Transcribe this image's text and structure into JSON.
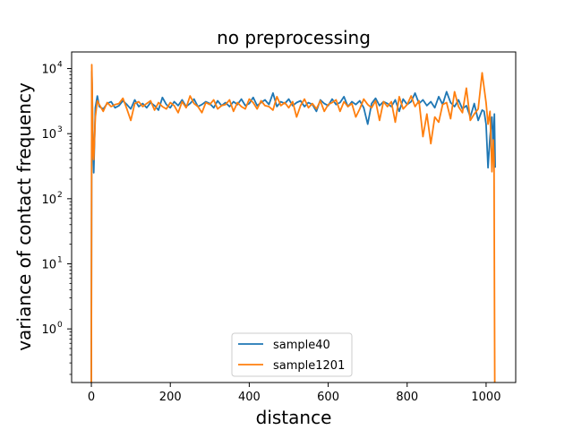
{
  "chart_data": {
    "type": "line",
    "title": "no preprocessing",
    "xlabel": "distance",
    "ylabel": "variance of contact frequency",
    "xlim": [
      -50,
      1075
    ],
    "ylim": [
      0.15,
      18000
    ],
    "yscale": "log",
    "grid": false,
    "legend_position": "bottom-center",
    "x_ticks": [
      0,
      200,
      400,
      600,
      800,
      1000
    ],
    "x_tick_labels": [
      "0",
      "200",
      "400",
      "600",
      "800",
      "1000"
    ],
    "y_ticks": [
      1,
      10,
      100,
      1000,
      10000
    ],
    "y_tick_labels": [
      "10",
      "10",
      "10",
      "10",
      "10"
    ],
    "y_tick_exponents": [
      "0",
      "1",
      "2",
      "3",
      "4"
    ],
    "series": [
      {
        "name": "sample40",
        "color": "#1f77b4",
        "x": [
          0,
          1,
          2,
          4,
          6,
          10,
          15,
          20,
          30,
          40,
          50,
          60,
          70,
          80,
          90,
          100,
          110,
          120,
          130,
          140,
          150,
          160,
          170,
          180,
          190,
          200,
          210,
          220,
          230,
          240,
          250,
          260,
          270,
          280,
          290,
          300,
          310,
          320,
          330,
          340,
          350,
          360,
          370,
          380,
          390,
          400,
          410,
          420,
          430,
          440,
          450,
          460,
          470,
          480,
          490,
          500,
          510,
          520,
          530,
          540,
          550,
          560,
          570,
          580,
          590,
          600,
          610,
          620,
          630,
          640,
          650,
          660,
          670,
          680,
          690,
          700,
          710,
          720,
          730,
          740,
          750,
          760,
          770,
          780,
          790,
          800,
          810,
          820,
          830,
          840,
          850,
          860,
          870,
          880,
          890,
          900,
          910,
          920,
          930,
          940,
          950,
          960,
          970,
          980,
          990,
          995,
          1000,
          1005,
          1010,
          1015,
          1018,
          1021,
          1023
        ],
        "y": [
          0.15,
          9000,
          5000,
          800,
          250,
          2500,
          3800,
          2600,
          2400,
          2900,
          3100,
          2500,
          2700,
          3200,
          2800,
          2400,
          3300,
          2600,
          2900,
          2500,
          3000,
          2700,
          2300,
          3600,
          2800,
          2500,
          3100,
          2700,
          3300,
          2600,
          2900,
          3400,
          2600,
          2800,
          3100,
          2900,
          2500,
          3200,
          2700,
          3000,
          2600,
          3100,
          2800,
          3400,
          2700,
          2900,
          3600,
          2700,
          3000,
          3300,
          2800,
          4200,
          2600,
          3100,
          2900,
          3400,
          2700,
          3000,
          3200,
          2600,
          3000,
          2800,
          2200,
          3300,
          2900,
          2700,
          3400,
          2800,
          3000,
          3700,
          2600,
          3100,
          2800,
          3200,
          2500,
          1400,
          2900,
          3500,
          2700,
          3100,
          2900,
          2600,
          3300,
          2200,
          3400,
          2800,
          3100,
          4200,
          2900,
          3300,
          2700,
          3100,
          2500,
          3700,
          2800,
          4400,
          3000,
          2600,
          3300,
          2400,
          2700,
          1800,
          2900,
          1600,
          2300,
          2200,
          1400,
          300,
          900,
          1800,
          600,
          2000,
          300
        ]
      },
      {
        "name": "sample1201",
        "color": "#ff7f0e",
        "x": [
          0,
          1,
          2,
          4,
          6,
          10,
          15,
          20,
          30,
          40,
          50,
          60,
          70,
          80,
          90,
          100,
          110,
          120,
          130,
          140,
          150,
          160,
          170,
          180,
          190,
          200,
          210,
          220,
          230,
          240,
          250,
          260,
          270,
          280,
          290,
          300,
          310,
          320,
          330,
          340,
          350,
          360,
          370,
          380,
          390,
          400,
          410,
          420,
          430,
          440,
          450,
          460,
          470,
          480,
          490,
          500,
          510,
          520,
          530,
          540,
          550,
          560,
          570,
          580,
          590,
          600,
          610,
          620,
          630,
          640,
          650,
          660,
          670,
          680,
          690,
          700,
          710,
          720,
          730,
          740,
          750,
          760,
          770,
          780,
          790,
          800,
          810,
          820,
          830,
          840,
          850,
          860,
          870,
          880,
          890,
          900,
          910,
          920,
          930,
          940,
          950,
          960,
          970,
          980,
          990,
          1000,
          1005,
          1010,
          1015,
          1018,
          1020,
          1022,
          1023
        ],
        "y": [
          0.15,
          11500,
          6000,
          500,
          400,
          1800,
          3200,
          2800,
          2200,
          3000,
          2600,
          2800,
          2900,
          3500,
          2400,
          1600,
          2900,
          3100,
          2600,
          2900,
          3200,
          2300,
          3000,
          2600,
          2400,
          3000,
          2700,
          2100,
          3100,
          2500,
          3800,
          2900,
          2600,
          2100,
          3000,
          2800,
          3300,
          2400,
          2700,
          2800,
          3300,
          2200,
          3000,
          2600,
          2400,
          3400,
          3000,
          2400,
          3200,
          2700,
          2600,
          2300,
          3700,
          2700,
          3000,
          2500,
          3100,
          1800,
          2700,
          3400,
          2500,
          2900,
          2400,
          3200,
          2200,
          2800,
          3000,
          3300,
          2200,
          3100,
          2600,
          2900,
          1800,
          2400,
          3400,
          2800,
          2500,
          3200,
          1600,
          3100,
          2600,
          3100,
          1500,
          3700,
          2400,
          2800,
          3800,
          2600,
          3200,
          900,
          2000,
          700,
          1800,
          1500,
          2800,
          3000,
          1700,
          4400,
          2600,
          2100,
          5000,
          1600,
          2000,
          2400,
          8600,
          3000,
          1400,
          2200,
          260,
          800,
          400,
          0.15,
          0.15
        ]
      }
    ]
  }
}
